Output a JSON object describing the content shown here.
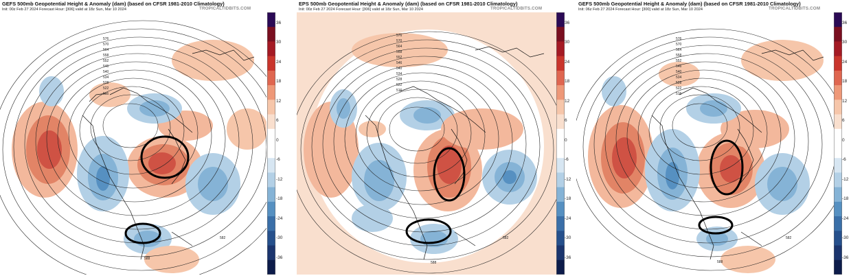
{
  "colorbar": {
    "labels": [
      "36",
      "30",
      "24",
      "18",
      "12",
      "6",
      "0",
      "-6",
      "-12",
      "-18",
      "-24",
      "-30",
      "-36"
    ],
    "colors": [
      "#2b0a55",
      "#7a0f20",
      "#a41a24",
      "#c9352c",
      "#df6650",
      "#ee9878",
      "#f6c6aa",
      "#f9dfce",
      "#ffffff",
      "#ffffff",
      "#d7e6f2",
      "#b3d0e6",
      "#85b3d6",
      "#5690c1",
      "#3a6fa8",
      "#26508c",
      "#1b356e",
      "#0d1c4a"
    ]
  },
  "panels": [
    {
      "title": "GEFS 500mb Geopotential Height & Anomaly (dam) (based on CFSR 1981-2010 Climatology)",
      "subtitle": "Init: 00z Feb 27 2024   Forecast Hour: [306]   valid at 18z Sun, Mar 10 2024",
      "brand": "TROPICALTIDBITS.COM",
      "contour_labels": [
        "576",
        "570",
        "564",
        "558",
        "552",
        "546",
        "540",
        "534",
        "528",
        "522",
        "516",
        "582",
        "588"
      ]
    },
    {
      "title": "EPS 500mb Geopotential Height & Anomaly (dam) (based on CFSR 1981-2010 Climatology)",
      "subtitle": "Init: 00z Feb 27 2024   Forecast Hour: [306]   valid at 18z Sun, Mar 10 2024",
      "brand": "TROPICALTIDBITS.COM",
      "contour_labels": [
        "576",
        "570",
        "564",
        "558",
        "552",
        "546",
        "540",
        "534",
        "528",
        "522",
        "516",
        "582",
        "588"
      ]
    },
    {
      "title": "GEFS 500mb Geopotential Height & Anomaly (dam) (based on CFSR 1981-2010 Climatology)",
      "subtitle": "Init: 06z Feb 27 2024   Forecast Hour: [300]   valid at 18z Sun, Mar 10 2024",
      "brand": "TROPICALTIDBITS.COM",
      "contour_labels": [
        "576",
        "570",
        "564",
        "558",
        "552",
        "546",
        "540",
        "534",
        "528",
        "522",
        "516",
        "582",
        "588"
      ]
    }
  ]
}
